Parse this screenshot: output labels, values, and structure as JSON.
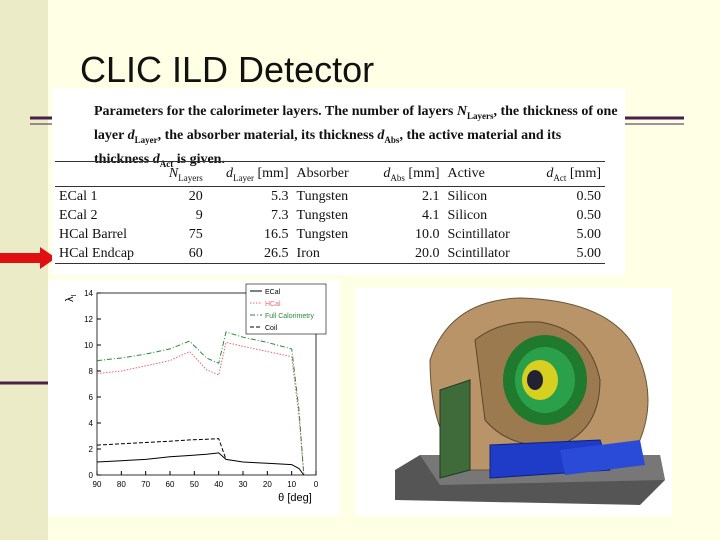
{
  "title": "CLIC ILD Detector",
  "table": {
    "caption": [
      {
        "text": "Parameters for the calorimeter layers.  The number of layers "
      },
      {
        "text": "N",
        "italic": true
      },
      {
        "text": "Layers",
        "sub": true
      },
      {
        "text": ", the thickness of one layer "
      },
      {
        "text": "d",
        "italic": true
      },
      {
        "text": "Layer",
        "sub": true
      },
      {
        "text": ", the absorber material, its thickness "
      },
      {
        "text": "d",
        "italic": true
      },
      {
        "text": "Abs",
        "sub": true
      },
      {
        "text": ", the active material and its thickness "
      },
      {
        "text": "d",
        "italic": true
      },
      {
        "text": "Act",
        "sub": true
      },
      {
        "text": " is given."
      }
    ],
    "headers": [
      [],
      [
        {
          "text": "N",
          "italic": true
        },
        {
          "text": "Layers",
          "sub": true
        }
      ],
      [
        {
          "text": "d",
          "italic": true
        },
        {
          "text": "Layer",
          "sub": true
        },
        {
          "text": " [mm]"
        }
      ],
      [
        {
          "text": "Absorber"
        }
      ],
      [
        {
          "text": "d",
          "italic": true
        },
        {
          "text": "Abs",
          "sub": true
        },
        {
          "text": " [mm]"
        }
      ],
      [
        {
          "text": "Active"
        }
      ],
      [
        {
          "text": "d",
          "italic": true
        },
        {
          "text": "Act",
          "sub": true
        },
        {
          "text": " [mm]"
        }
      ]
    ],
    "rows": [
      [
        "ECal 1",
        "20",
        "5.3",
        "Tungsten",
        "2.1",
        "Silicon",
        "0.50"
      ],
      [
        "ECal 2",
        "9",
        "7.3",
        "Tungsten",
        "4.1",
        "Silicon",
        "0.50"
      ],
      [
        "HCal Barrel",
        "75",
        "16.5",
        "Tungsten",
        "10.0",
        "Scintillator",
        "5.00"
      ],
      [
        "HCal Endcap",
        "60",
        "26.5",
        "Iron",
        "20.0",
        "Scintillator",
        "5.00"
      ]
    ]
  },
  "chart_data": {
    "type": "line",
    "x_label": "θ [deg]",
    "y_label": "λ",
    "y_label_sub": "I",
    "x": [
      90,
      80,
      70,
      60,
      52,
      45,
      40,
      37,
      30,
      20,
      10,
      7,
      5
    ],
    "xlim": [
      90,
      0
    ],
    "xticks": [
      90,
      80,
      70,
      60,
      50,
      40,
      30,
      20,
      10,
      0
    ],
    "ylim": [
      0,
      14
    ],
    "yticks": [
      0,
      2,
      4,
      6,
      8,
      10,
      12,
      14
    ],
    "legend": "upper right",
    "series": [
      {
        "name": "ECal",
        "color": "#000000",
        "line_style": "solid",
        "values": [
          1.0,
          1.1,
          1.2,
          1.4,
          1.5,
          1.6,
          1.7,
          1.2,
          1.0,
          0.9,
          0.8,
          0.5,
          0
        ]
      },
      {
        "name": "HCal",
        "color": "#e06a78",
        "line_style": "dotted",
        "values": [
          7.8,
          8.0,
          8.4,
          8.8,
          9.5,
          8.1,
          7.7,
          10.2,
          9.9,
          9.5,
          9.1,
          4.5,
          0
        ]
      },
      {
        "name": "Full Calorimetry",
        "color": "#2a8a3a",
        "line_style": "dash-dot",
        "values": [
          8.8,
          9.0,
          9.3,
          9.7,
          10.3,
          9.0,
          8.6,
          11.0,
          10.6,
          10.2,
          9.7,
          5.0,
          0
        ]
      },
      {
        "name": "Coil",
        "color": "#000000",
        "line_style": "dashed",
        "values": [
          2.3,
          2.4,
          2.5,
          2.6,
          2.7,
          2.75,
          2.8,
          1.2,
          null,
          null,
          null,
          null,
          null
        ]
      }
    ]
  }
}
